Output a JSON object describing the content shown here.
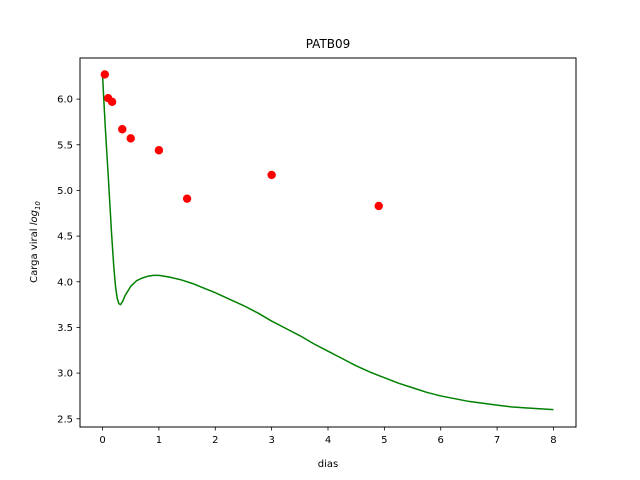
{
  "chart_data": {
    "type": "line+scatter",
    "title": "PATB09",
    "xlabel": "dias",
    "ylabel_prefix": "Carga viral ",
    "ylabel_italic": "log",
    "ylabel_sub": "10",
    "xlim": [
      -0.4,
      8.4
    ],
    "ylim": [
      2.41,
      6.45
    ],
    "xticks": [
      0,
      1,
      2,
      3,
      4,
      5,
      6,
      7,
      8
    ],
    "xtick_labels": [
      "0",
      "1",
      "2",
      "3",
      "4",
      "5",
      "6",
      "7",
      "8"
    ],
    "yticks": [
      2.5,
      3.0,
      3.5,
      4.0,
      4.5,
      5.0,
      5.5,
      6.0
    ],
    "ytick_labels": [
      "2.5",
      "3.0",
      "3.5",
      "4.0",
      "4.5",
      "5.0",
      "5.5",
      "6.0"
    ],
    "grid": false,
    "series": [
      {
        "kind": "line",
        "color": "#008000",
        "x": [
          0,
          0.02,
          0.05,
          0.08,
          0.1,
          0.13,
          0.16,
          0.2,
          0.23,
          0.26,
          0.29,
          0.32,
          0.36,
          0.4,
          0.5,
          0.6,
          0.7,
          0.8,
          0.9,
          1.0,
          1.1,
          1.2,
          1.4,
          1.6,
          1.8,
          2.0,
          2.25,
          2.5,
          2.75,
          3.0,
          3.25,
          3.5,
          3.75,
          4.0,
          4.25,
          4.5,
          4.75,
          5.0,
          5.25,
          5.5,
          5.75,
          6.0,
          6.25,
          6.5,
          6.75,
          7.0,
          7.25,
          7.5,
          7.75,
          8.0
        ],
        "y": [
          6.27,
          6.02,
          5.68,
          5.37,
          5.17,
          4.85,
          4.53,
          4.16,
          3.95,
          3.82,
          3.76,
          3.75,
          3.79,
          3.85,
          3.95,
          4.01,
          4.04,
          4.06,
          4.07,
          4.07,
          4.06,
          4.05,
          4.02,
          3.98,
          3.93,
          3.88,
          3.81,
          3.74,
          3.66,
          3.57,
          3.49,
          3.41,
          3.32,
          3.24,
          3.16,
          3.08,
          3.01,
          2.95,
          2.89,
          2.84,
          2.79,
          2.75,
          2.72,
          2.69,
          2.67,
          2.65,
          2.63,
          2.62,
          2.61,
          2.6
        ]
      },
      {
        "kind": "scatter",
        "color": "#ff0000",
        "x": [
          0.04,
          0.1,
          0.17,
          0.35,
          0.5,
          1.0,
          1.5,
          3.0,
          4.9
        ],
        "y": [
          6.27,
          6.01,
          5.97,
          5.67,
          5.57,
          5.44,
          4.91,
          5.17,
          4.83
        ]
      }
    ]
  }
}
